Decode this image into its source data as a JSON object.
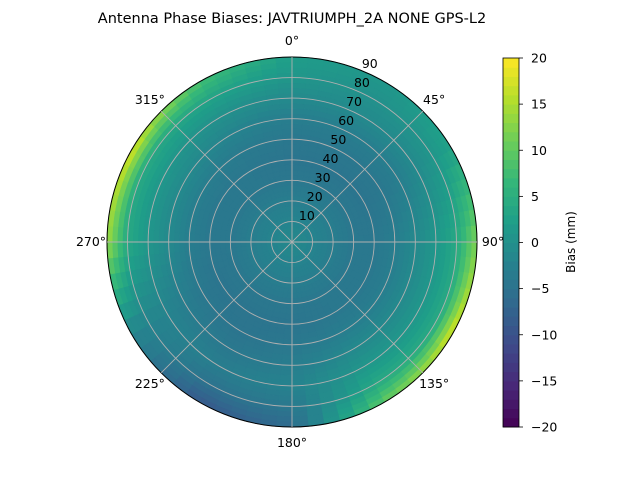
{
  "chart_data": {
    "type": "heatmap",
    "subtype": "polar",
    "title": "Antenna Phase Biases: JAVTRIUMPH_2A   NONE GPS-L2",
    "angle_ticks": [
      "0°",
      "45°",
      "90°",
      "135°",
      "180°",
      "225°",
      "270°",
      "315°"
    ],
    "radial_ticks": [
      "10",
      "20",
      "30",
      "40",
      "50",
      "60",
      "70",
      "80",
      "90"
    ],
    "radial_range": [
      0,
      90
    ],
    "theta_direction": "clockwise",
    "theta_zero": "top",
    "grid": true,
    "colormap": "viridis",
    "colorbar": {
      "label": "Bias (mm)",
      "range": [
        -20,
        20
      ],
      "ticks": [
        "-20",
        "-15",
        "-10",
        "-5",
        "0",
        "5",
        "10",
        "15",
        "20"
      ]
    },
    "zenith": [
      0,
      10,
      20,
      30,
      40,
      50,
      60,
      70,
      80,
      90
    ],
    "azimuth": [
      0,
      30,
      60,
      90,
      120,
      150,
      180,
      210,
      240,
      270,
      300,
      330
    ],
    "values": [
      [
        -1,
        -1,
        -1,
        -1,
        -1,
        -1,
        -1,
        -1,
        -1,
        -1,
        -1,
        -1
      ],
      [
        -2,
        -2,
        -2,
        -2,
        -2,
        -2,
        -2,
        -2,
        -2,
        -2,
        -2,
        -2
      ],
      [
        -3,
        -3,
        -3,
        -3,
        -3,
        -3,
        -3,
        -3,
        -3,
        -3,
        -3,
        -3
      ],
      [
        -4,
        -4,
        -4,
        -4,
        -4,
        -4,
        -4,
        -4,
        -4,
        -4,
        -4,
        -4
      ],
      [
        -4.5,
        -4.5,
        -4.5,
        -4,
        -4,
        -4,
        -4.5,
        -4.5,
        -4.5,
        -4,
        -4,
        -4
      ],
      [
        -4,
        -4,
        -4,
        -3,
        -3,
        -3,
        -4,
        -4.5,
        -4,
        -3,
        -3,
        -3.5
      ],
      [
        -3,
        -3,
        -3,
        -1,
        -1,
        -1,
        -3,
        -4,
        -3,
        -1,
        -1,
        -2
      ],
      [
        -1,
        -1,
        -1,
        1,
        1,
        1,
        -2,
        -3,
        -2,
        1,
        1,
        0
      ],
      [
        1,
        0,
        1,
        4,
        4,
        4,
        -4,
        -5,
        -2,
        4,
        4,
        3
      ],
      [
        2,
        1,
        3,
        12,
        18,
        10,
        -6,
        -9,
        -2,
        14,
        18,
        8
      ]
    ]
  }
}
